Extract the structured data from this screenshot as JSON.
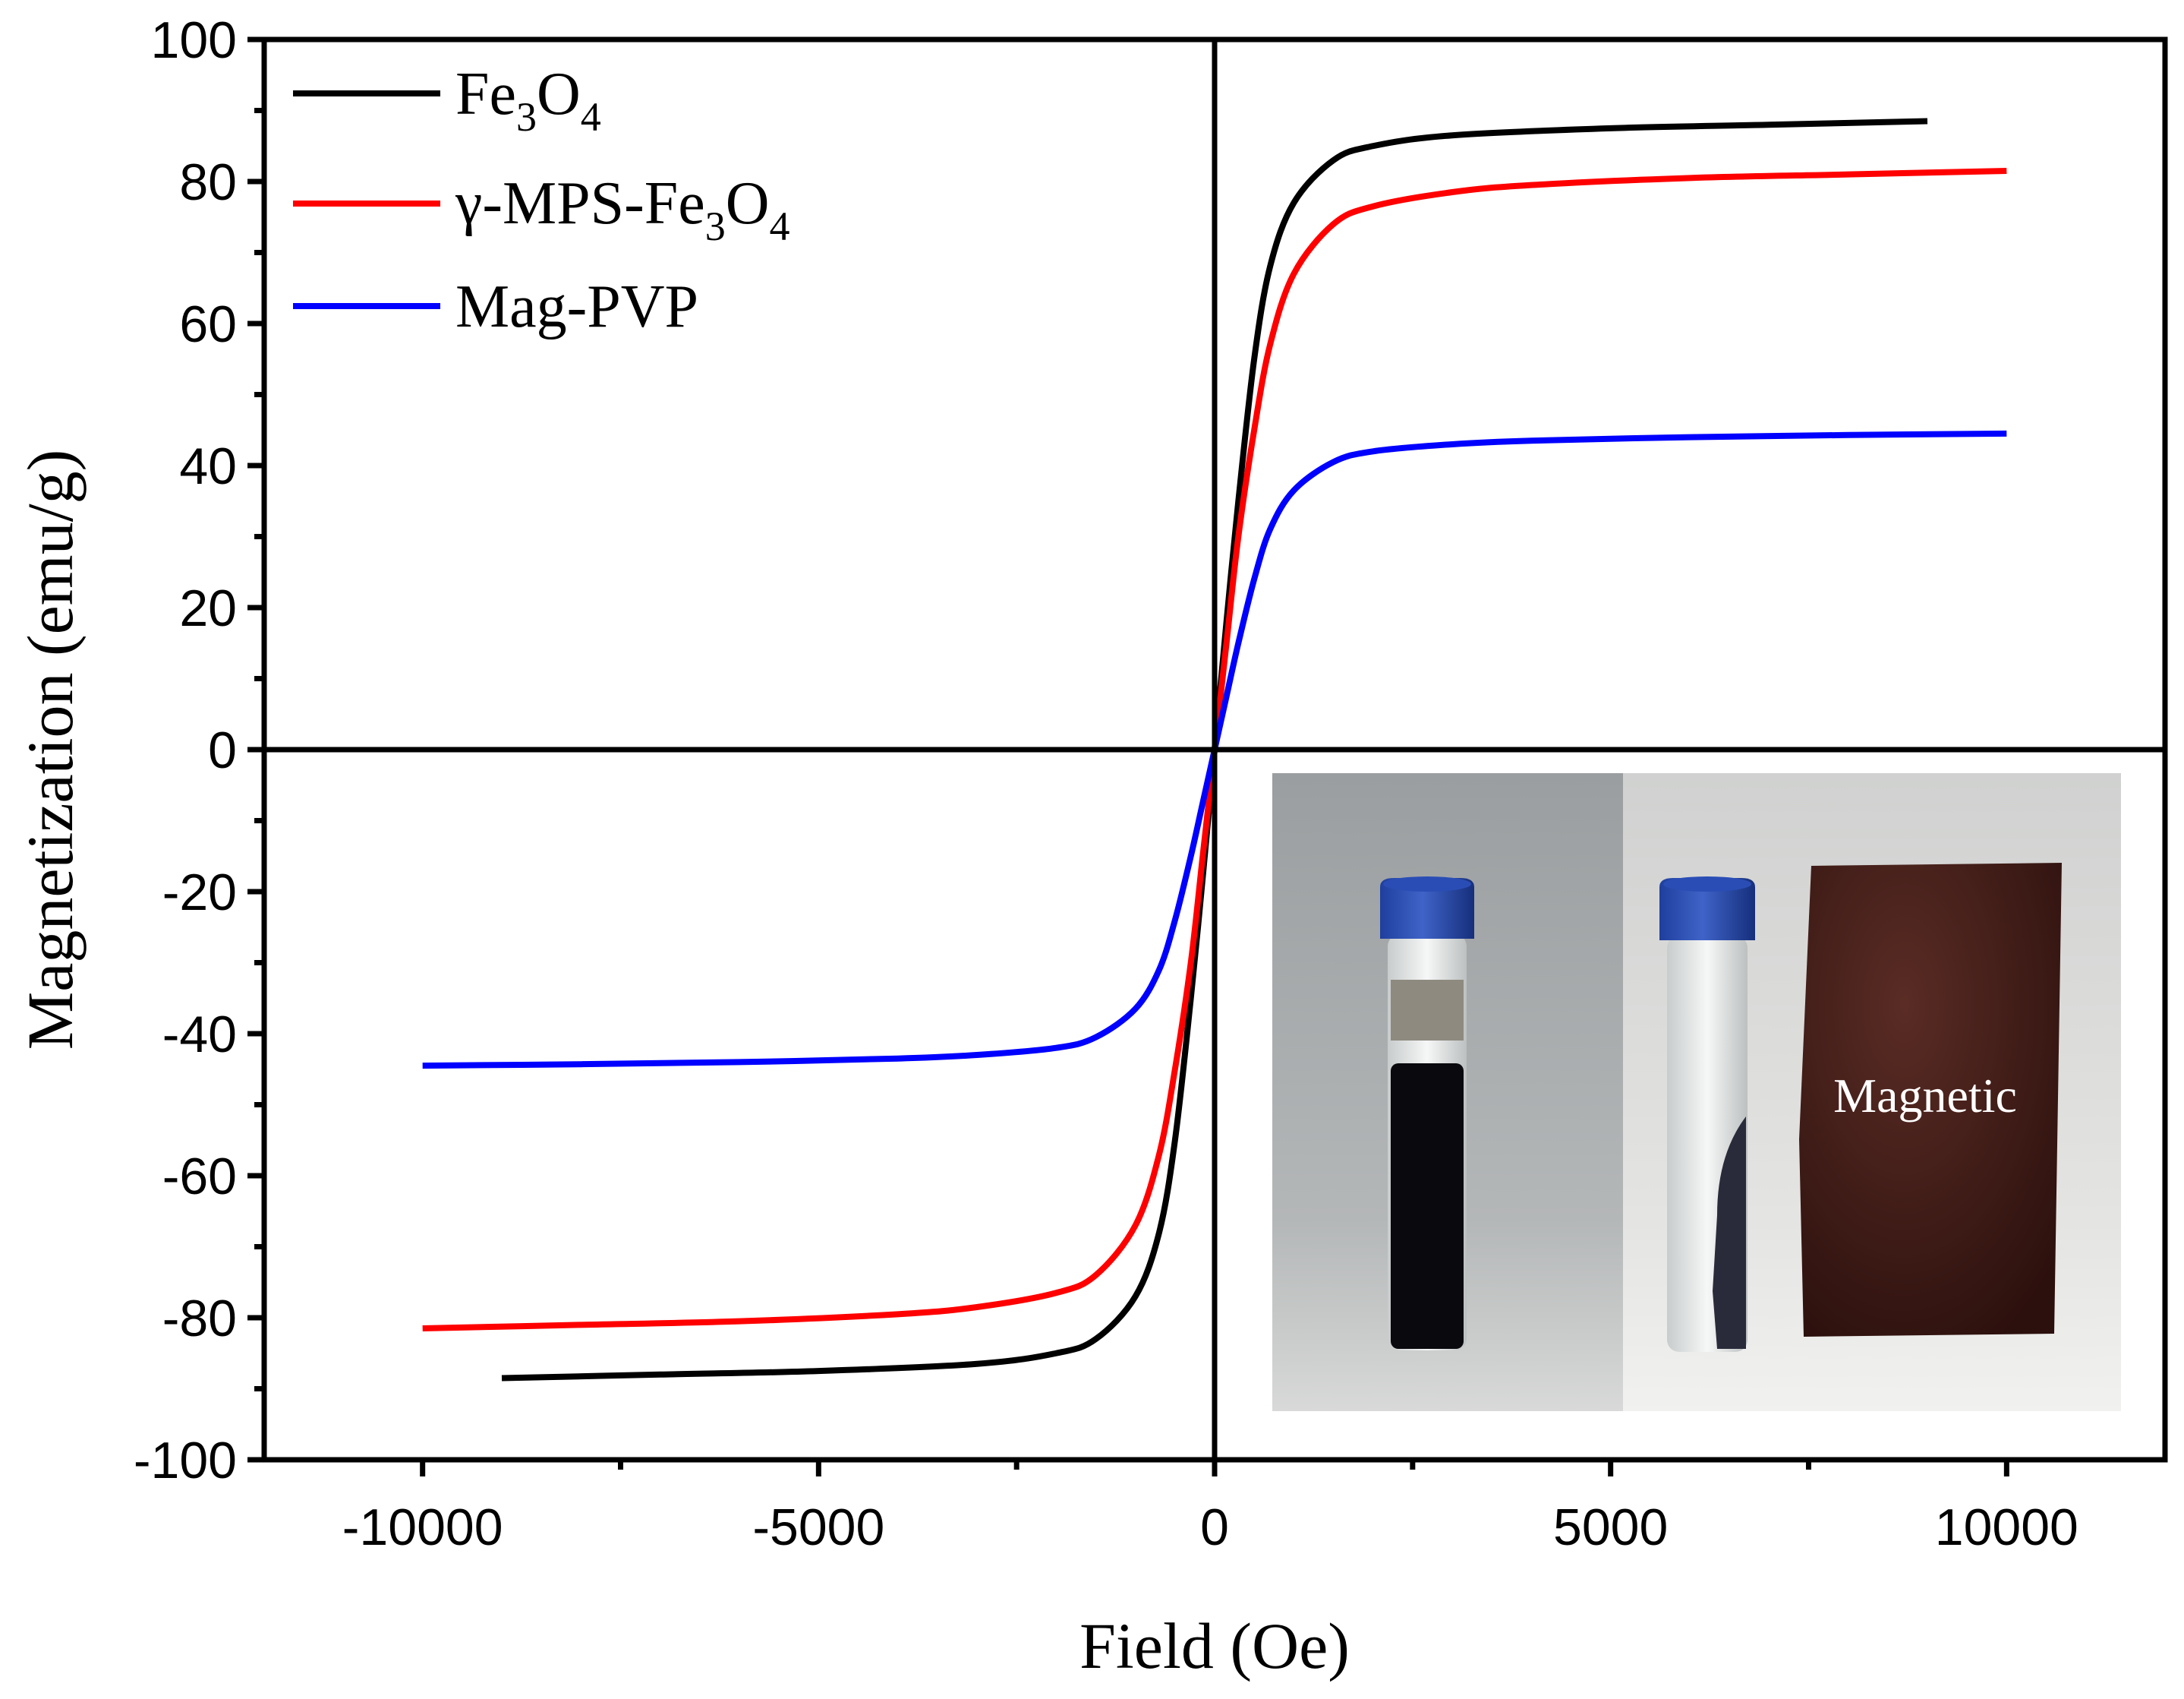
{
  "chart_data": {
    "type": "line",
    "xlabel": "Field (Oe)",
    "ylabel": "Magnetization (emu/g)",
    "xlim": [
      -12000,
      12000
    ],
    "ylim": [
      -100,
      100
    ],
    "x_ticks": [
      -10000,
      -5000,
      0,
      5000,
      10000
    ],
    "x_tick_labels": [
      "-10000",
      "-5000",
      "0",
      "5000",
      "10000"
    ],
    "y_ticks": [
      -100,
      -80,
      -60,
      -40,
      -20,
      0,
      20,
      40,
      60,
      80,
      100
    ],
    "y_tick_labels": [
      "-100",
      "-80",
      "-60",
      "-40",
      "-20",
      "0",
      "20",
      "40",
      "60",
      "80",
      "100"
    ],
    "grid": false,
    "legend_position": "top-left",
    "series": [
      {
        "name": "Fe3O4",
        "legend_main": "Fe",
        "legend_sub1": "3",
        "legend_mid": "O",
        "legend_sub2": "4",
        "color": "#000000",
        "x": [
          -9000,
          -7000,
          -5000,
          -3000,
          -2000,
          -1500,
          -1000,
          -700,
          -500,
          -300,
          -150,
          0,
          150,
          300,
          500,
          700,
          1000,
          1500,
          2000,
          3000,
          5000,
          7000,
          9000
        ],
        "y": [
          -88.5,
          -88,
          -87.5,
          -86.5,
          -85,
          -83,
          -77,
          -68,
          -55,
          -35,
          -18,
          0,
          18,
          35,
          55,
          68,
          77,
          83,
          85,
          86.5,
          87.5,
          88,
          88.5
        ]
      },
      {
        "name": "γ-MPS-Fe3O4",
        "legend_main": "γ-MPS-Fe",
        "legend_sub1": "3",
        "legend_mid": "O",
        "legend_sub2": "4",
        "color": "#ff0000",
        "x": [
          -10000,
          -8000,
          -6000,
          -4000,
          -3000,
          -2000,
          -1500,
          -1000,
          -700,
          -500,
          -300,
          -150,
          0,
          150,
          300,
          500,
          700,
          1000,
          1500,
          2000,
          3000,
          4000,
          6000,
          8000,
          10000
        ],
        "y": [
          -81.5,
          -81,
          -80.5,
          -79.5,
          -78.5,
          -76.5,
          -74,
          -67,
          -57,
          -45,
          -30,
          -15,
          0,
          15,
          30,
          45,
          57,
          67,
          74,
          76.5,
          78.5,
          79.5,
          80.5,
          81,
          81.5
        ]
      },
      {
        "name": "Mag-PVP",
        "legend_main": "Mag-PVP",
        "color": "#0000ff",
        "x": [
          -10000,
          -8000,
          -6000,
          -4000,
          -3000,
          -2000,
          -1500,
          -1000,
          -700,
          -500,
          -300,
          -150,
          0,
          150,
          300,
          500,
          700,
          1000,
          1500,
          2000,
          3000,
          4000,
          6000,
          8000,
          10000
        ],
        "y": [
          -44.5,
          -44.3,
          -44,
          -43.5,
          -43,
          -42,
          -40.5,
          -36.5,
          -31,
          -24,
          -15,
          -7.5,
          0,
          7.5,
          15,
          24,
          31,
          36.5,
          40.5,
          42,
          43,
          43.5,
          44,
          44.3,
          44.5
        ]
      }
    ],
    "inset_label": "Magnetic"
  }
}
